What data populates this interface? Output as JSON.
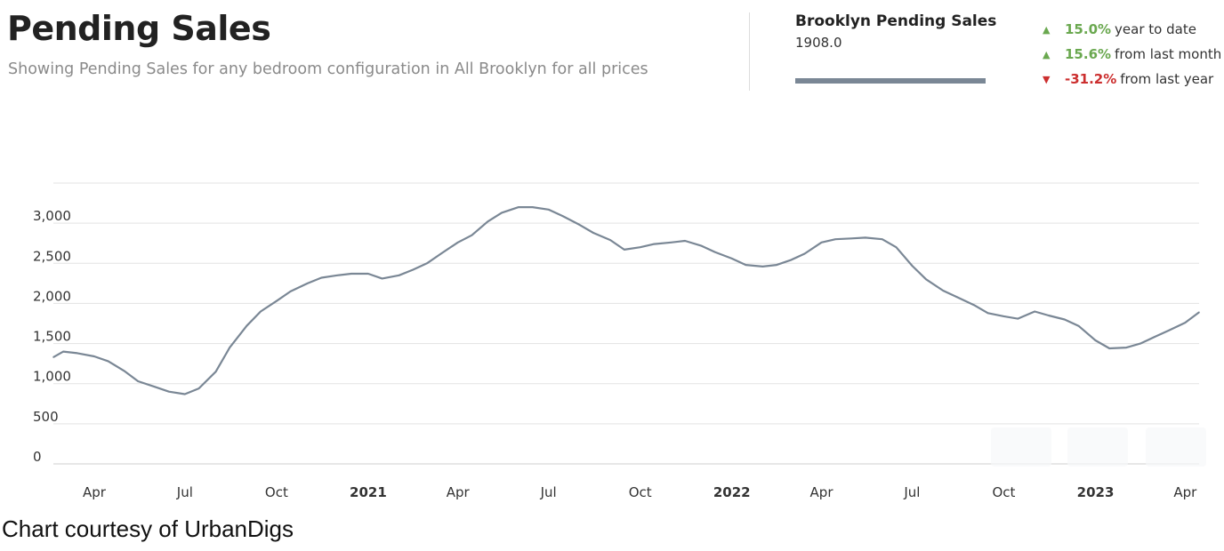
{
  "header": {
    "title": "Pending Sales",
    "subtitle": "Showing Pending Sales for any bedroom configuration in All Brooklyn for all prices"
  },
  "series_box": {
    "name": "Brooklyn Pending Sales",
    "value": "1908.0",
    "color": "#7a8795"
  },
  "stats": [
    {
      "direction": "up",
      "percent": "15.0%",
      "label": "year to date",
      "color": "#6aa84f"
    },
    {
      "direction": "up",
      "percent": "15.6%",
      "label": "from last month",
      "color": "#6aa84f"
    },
    {
      "direction": "down",
      "percent": "-31.2%",
      "label": "from last year",
      "color": "#cc2f2f"
    }
  ],
  "footer": "Chart courtesy of UrbanDigs",
  "chart_data": {
    "type": "line",
    "x_ticks": [
      {
        "label": "Apr",
        "x": "2020-04-01",
        "bold": false
      },
      {
        "label": "Jul",
        "x": "2020-07-01",
        "bold": false
      },
      {
        "label": "Oct",
        "x": "2020-10-01",
        "bold": false
      },
      {
        "label": "2021",
        "x": "2021-01-01",
        "bold": true
      },
      {
        "label": "Apr",
        "x": "2021-04-01",
        "bold": false
      },
      {
        "label": "Jul",
        "x": "2021-07-01",
        "bold": false
      },
      {
        "label": "Oct",
        "x": "2021-10-01",
        "bold": false
      },
      {
        "label": "2022",
        "x": "2022-01-01",
        "bold": true
      },
      {
        "label": "Apr",
        "x": "2022-04-01",
        "bold": false
      },
      {
        "label": "Jul",
        "x": "2022-07-01",
        "bold": false
      },
      {
        "label": "Oct",
        "x": "2022-10-01",
        "bold": false
      },
      {
        "label": "2023",
        "x": "2023-01-01",
        "bold": true
      },
      {
        "label": "Apr",
        "x": "2023-04-01",
        "bold": false
      }
    ],
    "y_ticks": [
      {
        "label": "0",
        "value": 0
      },
      {
        "label": "500",
        "value": 500
      },
      {
        "label": "1,000",
        "value": 1000
      },
      {
        "label": "1,500",
        "value": 1500
      },
      {
        "label": "2,000",
        "value": 2000
      },
      {
        "label": "2,500",
        "value": 2500
      },
      {
        "label": "3,000",
        "value": 3000
      }
    ],
    "ylim": [
      0,
      3500
    ],
    "xlim": [
      "2020-02-20",
      "2023-04-15"
    ],
    "grid": true,
    "series": [
      {
        "name": "Brooklyn Pending Sales",
        "color": "#7a8795",
        "points": [
          [
            "2020-02-20",
            1330
          ],
          [
            "2020-03-01",
            1400
          ],
          [
            "2020-03-15",
            1380
          ],
          [
            "2020-04-01",
            1340
          ],
          [
            "2020-04-15",
            1280
          ],
          [
            "2020-05-01",
            1160
          ],
          [
            "2020-05-15",
            1030
          ],
          [
            "2020-06-01",
            960
          ],
          [
            "2020-06-15",
            900
          ],
          [
            "2020-07-01",
            870
          ],
          [
            "2020-07-15",
            940
          ],
          [
            "2020-08-01",
            1150
          ],
          [
            "2020-08-15",
            1450
          ],
          [
            "2020-09-01",
            1720
          ],
          [
            "2020-09-15",
            1900
          ],
          [
            "2020-10-01",
            2030
          ],
          [
            "2020-10-15",
            2150
          ],
          [
            "2020-11-01",
            2250
          ],
          [
            "2020-11-15",
            2320
          ],
          [
            "2020-12-01",
            2350
          ],
          [
            "2020-12-15",
            2370
          ],
          [
            "2021-01-01",
            2370
          ],
          [
            "2021-01-15",
            2310
          ],
          [
            "2021-02-01",
            2350
          ],
          [
            "2021-02-15",
            2420
          ],
          [
            "2021-03-01",
            2500
          ],
          [
            "2021-03-15",
            2620
          ],
          [
            "2021-04-01",
            2760
          ],
          [
            "2021-04-15",
            2850
          ],
          [
            "2021-05-01",
            3020
          ],
          [
            "2021-05-15",
            3130
          ],
          [
            "2021-06-01",
            3200
          ],
          [
            "2021-06-15",
            3200
          ],
          [
            "2021-07-01",
            3170
          ],
          [
            "2021-07-15",
            3090
          ],
          [
            "2021-08-01",
            2980
          ],
          [
            "2021-08-15",
            2880
          ],
          [
            "2021-09-01",
            2790
          ],
          [
            "2021-09-15",
            2670
          ],
          [
            "2021-10-01",
            2700
          ],
          [
            "2021-10-15",
            2740
          ],
          [
            "2021-11-01",
            2760
          ],
          [
            "2021-11-15",
            2780
          ],
          [
            "2021-12-01",
            2720
          ],
          [
            "2021-12-15",
            2640
          ],
          [
            "2022-01-01",
            2560
          ],
          [
            "2022-01-15",
            2480
          ],
          [
            "2022-02-01",
            2460
          ],
          [
            "2022-02-15",
            2480
          ],
          [
            "2022-03-01",
            2540
          ],
          [
            "2022-03-15",
            2620
          ],
          [
            "2022-04-01",
            2760
          ],
          [
            "2022-04-15",
            2800
          ],
          [
            "2022-05-01",
            2810
          ],
          [
            "2022-05-15",
            2820
          ],
          [
            "2022-06-01",
            2800
          ],
          [
            "2022-06-15",
            2700
          ],
          [
            "2022-07-01",
            2470
          ],
          [
            "2022-07-15",
            2300
          ],
          [
            "2022-08-01",
            2160
          ],
          [
            "2022-08-15",
            2080
          ],
          [
            "2022-09-01",
            1980
          ],
          [
            "2022-09-15",
            1880
          ],
          [
            "2022-10-01",
            1840
          ],
          [
            "2022-10-15",
            1810
          ],
          [
            "2022-11-01",
            1900
          ],
          [
            "2022-11-15",
            1850
          ],
          [
            "2022-12-01",
            1800
          ],
          [
            "2022-12-15",
            1720
          ],
          [
            "2023-01-01",
            1540
          ],
          [
            "2023-01-15",
            1440
          ],
          [
            "2023-02-01",
            1450
          ],
          [
            "2023-02-15",
            1500
          ],
          [
            "2023-03-01",
            1580
          ],
          [
            "2023-03-15",
            1660
          ],
          [
            "2023-04-01",
            1760
          ],
          [
            "2023-04-15",
            1890
          ]
        ]
      }
    ]
  }
}
